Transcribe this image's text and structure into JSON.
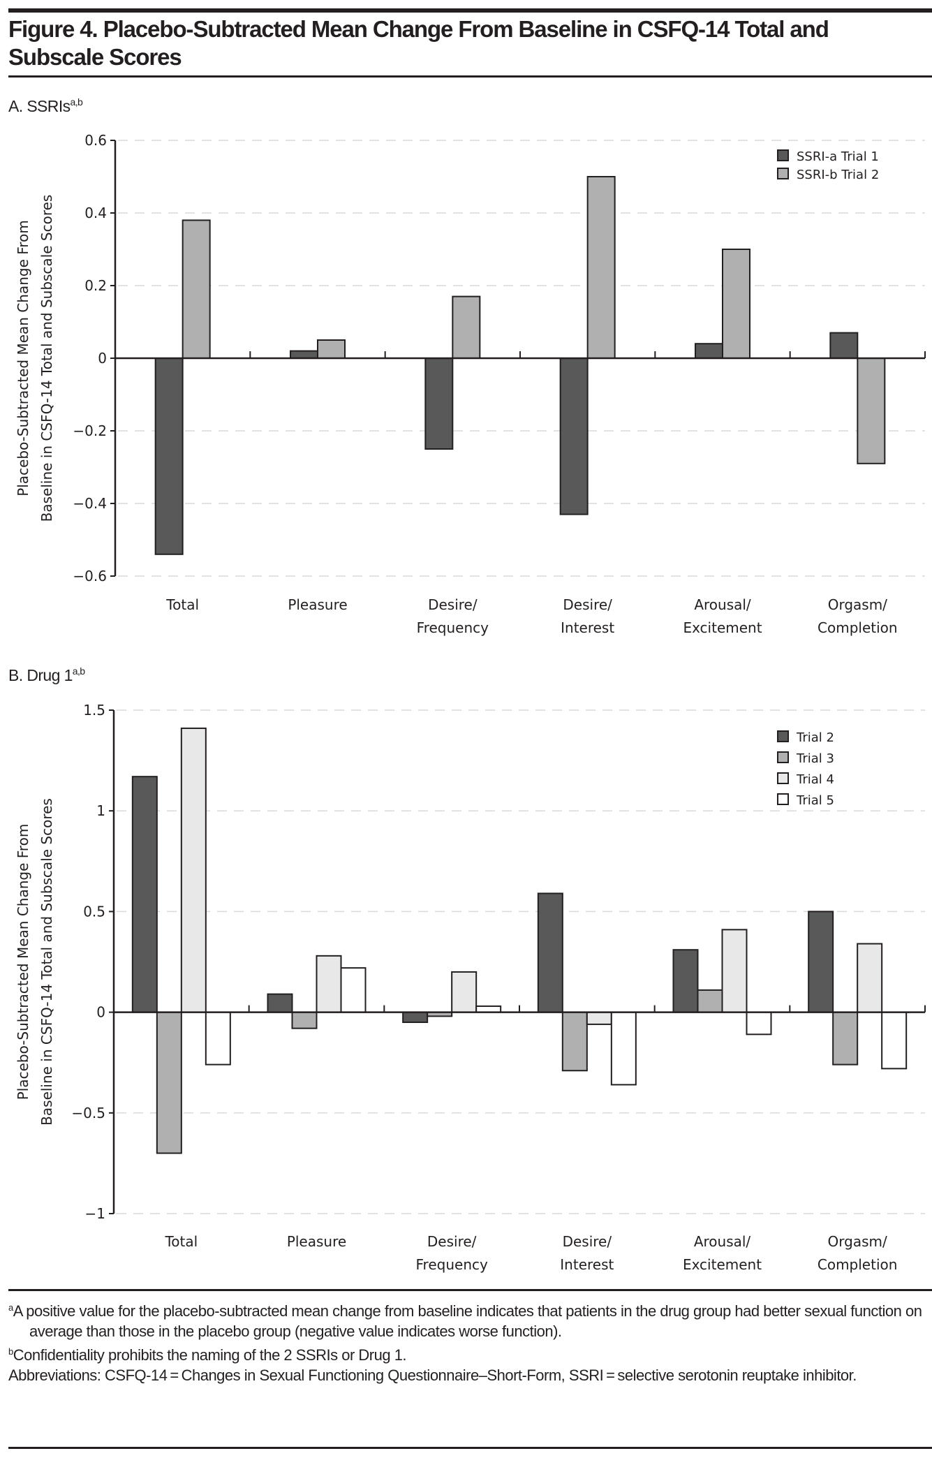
{
  "figure": {
    "title_line1": "Figure 4. Placebo-Subtracted Mean Change From Baseline in CSFQ-14 Total and",
    "title_line2": "Subscale Scores"
  },
  "colors": {
    "dark": "#595959",
    "mid": "#b0b0b0",
    "light": "#e8e8e8",
    "white": "#ffffff",
    "stroke": "#231f20",
    "grid": "#d9d9d9"
  },
  "chart_data": [
    {
      "type": "bar",
      "panel_label": "A. SSRIs",
      "panel_sup": "a,b",
      "categories": [
        [
          "Total"
        ],
        [
          "Pleasure"
        ],
        [
          "Desire/",
          "Frequency"
        ],
        [
          "Desire/",
          "Interest"
        ],
        [
          "Arousal/",
          "Excitement"
        ],
        [
          "Orgasm/",
          "Completion"
        ]
      ],
      "series": [
        {
          "name": "SSRI-a Trial 1",
          "color_key": "dark",
          "values": [
            -0.54,
            0.02,
            -0.25,
            -0.43,
            0.04,
            0.07
          ]
        },
        {
          "name": "SSRI-b Trial 2",
          "color_key": "mid",
          "values": [
            0.38,
            0.05,
            0.17,
            0.5,
            0.3,
            -0.29
          ]
        }
      ],
      "ylabel": [
        "Placebo-Subtracted Mean Change From",
        "Baseline in CSFQ-14 Total and Subscale Scores"
      ],
      "xlabel": "",
      "ylim": [
        -0.6,
        0.6
      ],
      "yticks": [
        0.6,
        0.4,
        0.2,
        0,
        -0.2,
        -0.4,
        -0.6
      ],
      "ytick_labels": [
        "0.6",
        "0.4",
        "0.2",
        "0",
        "−0.2",
        "−0.4",
        "−0.6"
      ],
      "grid": "horizontal dashed",
      "legend_position": "top-right"
    },
    {
      "type": "bar",
      "panel_label": "B. Drug 1",
      "panel_sup": "a,b",
      "categories": [
        [
          "Total"
        ],
        [
          "Pleasure"
        ],
        [
          "Desire/",
          "Frequency"
        ],
        [
          "Desire/",
          "Interest"
        ],
        [
          "Arousal/",
          "Excitement"
        ],
        [
          "Orgasm/",
          "Completion"
        ]
      ],
      "series": [
        {
          "name": "Trial 2",
          "color_key": "dark",
          "values": [
            1.17,
            0.09,
            -0.05,
            0.59,
            0.31,
            0.5
          ]
        },
        {
          "name": "Trial 3",
          "color_key": "mid",
          "values": [
            -0.7,
            -0.08,
            -0.02,
            -0.29,
            0.11,
            -0.26
          ]
        },
        {
          "name": "Trial 4",
          "color_key": "light",
          "values": [
            1.41,
            0.28,
            0.2,
            -0.06,
            0.41,
            0.34
          ]
        },
        {
          "name": "Trial 5",
          "color_key": "white",
          "values": [
            -0.26,
            0.22,
            0.03,
            -0.36,
            -0.11,
            -0.28
          ]
        }
      ],
      "ylabel": [
        "Placebo-Subtracted Mean Change From",
        "Baseline in CSFQ-14 Total and Subscale Scores"
      ],
      "xlabel": "",
      "ylim": [
        -1,
        1.5
      ],
      "yticks": [
        1.5,
        1,
        0.5,
        0,
        -0.5,
        -1
      ],
      "ytick_labels": [
        "1.5",
        "1",
        "0.5",
        "0",
        "−0.5",
        "−1"
      ],
      "grid": "horizontal dashed",
      "legend_position": "top-right"
    }
  ],
  "footnotes": {
    "a_mark": "a",
    "a_text": "A positive value for the placebo-subtracted mean change from baseline indicates that patients in the drug group had better sexual function on average than those in the placebo group (negative value indicates worse function).",
    "b_mark": "b",
    "b_text": "Confidentiality prohibits the naming of the 2 SSRIs or Drug 1.",
    "abbreviations": "Abbreviations: CSFQ-14 = Changes in Sexual Functioning Questionnaire–Short-Form, SSRI = selective serotonin reuptake inhibitor."
  }
}
